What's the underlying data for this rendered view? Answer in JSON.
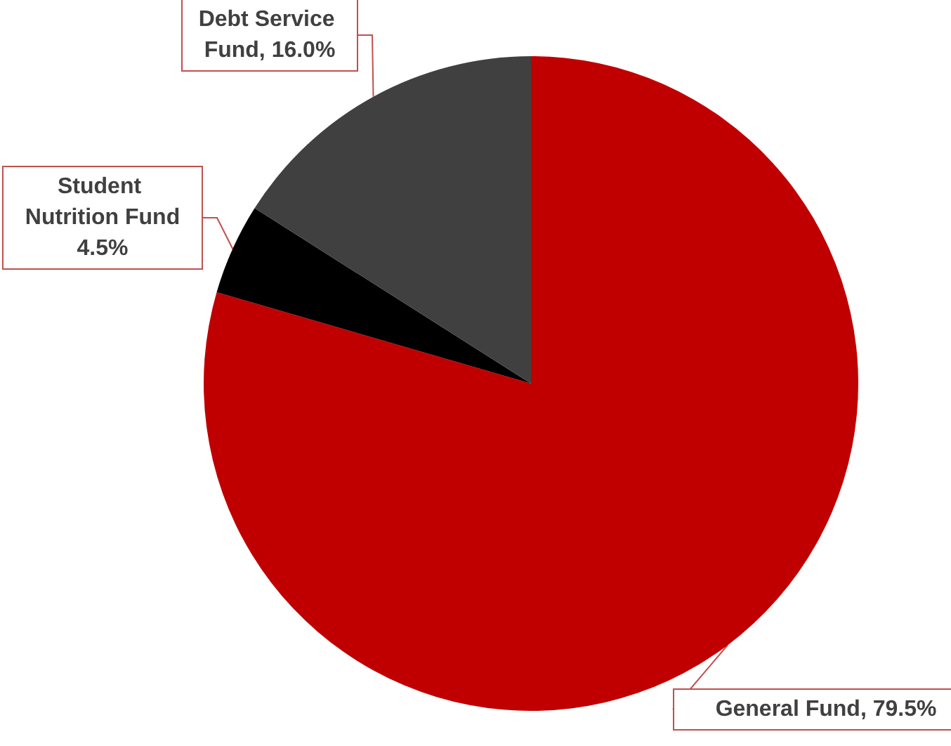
{
  "chart_data": {
    "type": "pie",
    "categories": [
      "General Fund",
      "Student Nutrition Fund",
      "Debt Service Fund"
    ],
    "values": [
      79.5,
      4.5,
      16.0
    ],
    "colors": [
      "#c00000",
      "#000000",
      "#404040"
    ],
    "value_labels": [
      "79.5%",
      "4.5%",
      "16.0%"
    ],
    "legend": false
  }
}
